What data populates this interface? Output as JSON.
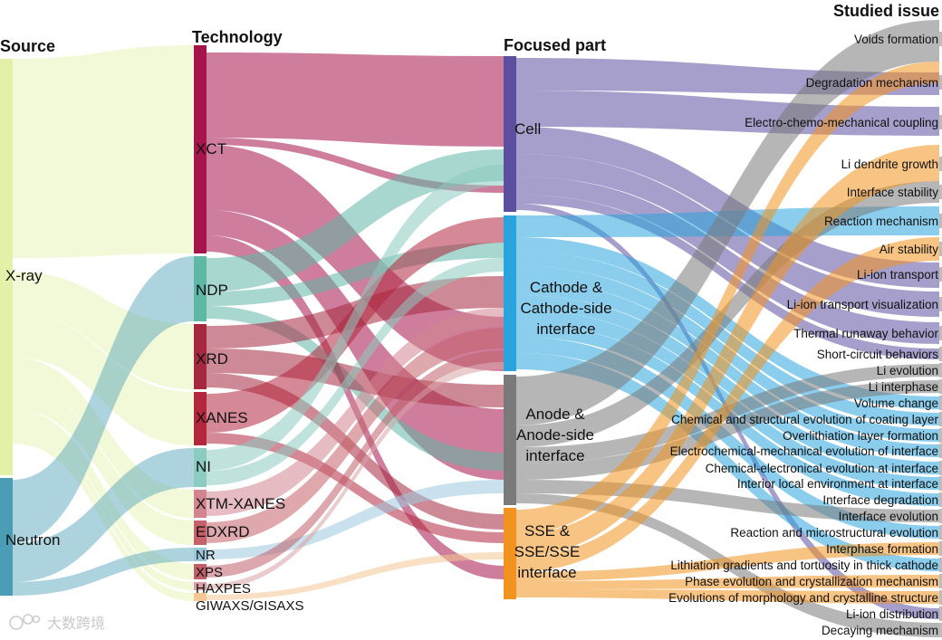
{
  "headers": {
    "source": "Source",
    "technology": "Technology",
    "focused_part": "Focused part",
    "studied_issue": "Studied issue"
  },
  "sources": [
    {
      "label": "X-ray",
      "color": "#e3f1a8"
    },
    {
      "label": "Neutron",
      "color": "#4a9db5"
    }
  ],
  "technologies": [
    {
      "label": "XCT",
      "color": "#a5144a"
    },
    {
      "label": "NDP",
      "color": "#5fb7a6"
    },
    {
      "label": "XRD",
      "color": "#a5283f"
    },
    {
      "label": "XANES",
      "color": "#b3263e"
    },
    {
      "label": "NI",
      "color": "#8ccbc0"
    },
    {
      "label": "XTM-XANES",
      "color": "#d2858f"
    },
    {
      "label": "EDXRD",
      "color": "#c4616a"
    },
    {
      "label": "NR",
      "color": "#9cc8dc"
    },
    {
      "label": "XPS",
      "color": "#c05e6a"
    },
    {
      "label": "HAXPES",
      "color": "#d9a0a5"
    },
    {
      "label": "GIWAXS/GISAXS",
      "color": "#f4c793"
    }
  ],
  "focused_parts": [
    {
      "label_lines": [
        "Cell"
      ],
      "color": "#5c4fa0"
    },
    {
      "label_lines": [
        "Cathode &",
        "Cathode-side",
        "interface"
      ],
      "color": "#2aa4dc"
    },
    {
      "label_lines": [
        "Anode &",
        "Anode-side",
        "interface"
      ],
      "color": "#7a7a7a"
    },
    {
      "label_lines": [
        "SSE &",
        "SSE/SSE",
        "interface"
      ],
      "color": "#f2931f"
    }
  ],
  "issues": [
    "Voids formation",
    "Degradation mechanism",
    "Electro-chemo-mechanical coupling",
    "Li dendrite growth",
    "Interface stability",
    "Reaction mechanism",
    "Air stability",
    "Li-ion transport",
    "Li-ion transport visualization",
    "Thermal runaway behavior",
    "Short-circuit behaviors",
    "Li evolution",
    "Li interphase",
    "Volume change",
    "Chemical and structural evolution of coating layer",
    "Overlithiation layer formation",
    "Electrochemical-mechanical evolution of interface",
    "Chemical-electronical evolution at interface",
    "Interior local environment at interface",
    "Interface degradation",
    "Interface evolution",
    "Reaction and microstructural evolution",
    "Interphase formation",
    "Lithiation gradients and tortuosity in thick cathode",
    "Phase evolution and crystallization mechanism",
    "Evolutions of morphology and crystalline structure",
    "Li-ion distribution",
    "Decaying mechanism"
  ],
  "watermark": "大数跨境"
}
